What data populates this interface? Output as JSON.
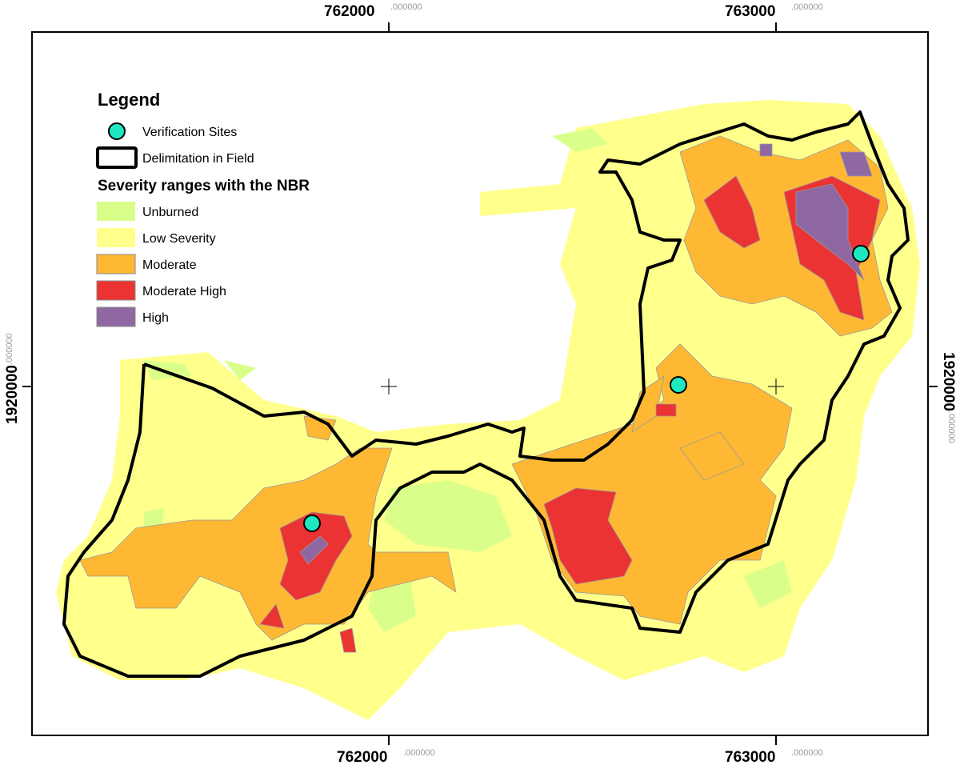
{
  "map": {
    "x_ticks": [
      {
        "value": "762000",
        "decimals": ".000000"
      },
      {
        "value": "763000",
        "decimals": ".000000"
      }
    ],
    "y_ticks": [
      {
        "value": "1920000",
        "decimals": ".000000"
      }
    ],
    "verification_sites_count": 3
  },
  "legend": {
    "title": "Legend",
    "verification_sites": "Verification Sites",
    "delimitation": "Delimitation in Field",
    "severity_title": "Severity ranges with the NBR",
    "classes": [
      {
        "label": "Unburned",
        "color": "#d9ff8a"
      },
      {
        "label": "Low Severity",
        "color": "#ffff8c"
      },
      {
        "label": "Moderate",
        "color": "#ffb833"
      },
      {
        "label": "Moderate High",
        "color": "#eb3333"
      },
      {
        "label": "High",
        "color": "#8f68a3"
      }
    ],
    "site_color": "#1fe8c0",
    "delimitation_color": "#000000"
  }
}
